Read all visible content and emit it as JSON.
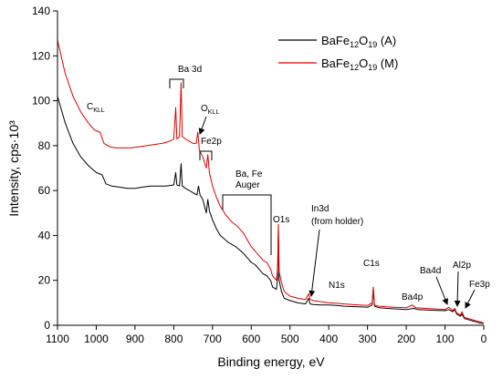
{
  "chart_data": {
    "type": "line",
    "xlabel": "Binding energy, eV",
    "ylabel": "Intensity, cps·10³",
    "xlim": [
      1100,
      0
    ],
    "ylim": [
      0,
      140
    ],
    "x_reversed": true,
    "x_ticks": [
      1100,
      1000,
      900,
      800,
      700,
      600,
      500,
      400,
      300,
      200,
      100,
      0
    ],
    "y_ticks": [
      0,
      20,
      40,
      60,
      80,
      100,
      120,
      140
    ],
    "grid": false,
    "legend_position": "top-right",
    "series": [
      {
        "name": "BaFe12O19 (A)",
        "color": "#000000",
        "points": [
          [
            1100,
            102
          ],
          [
            1080,
            90
          ],
          [
            1060,
            81
          ],
          [
            1040,
            75
          ],
          [
            1020,
            71
          ],
          [
            1000,
            68
          ],
          [
            985,
            67
          ],
          [
            975,
            63
          ],
          [
            960,
            62
          ],
          [
            940,
            61.5
          ],
          [
            920,
            61
          ],
          [
            900,
            61
          ],
          [
            880,
            61.5
          ],
          [
            860,
            62
          ],
          [
            840,
            62
          ],
          [
            820,
            62
          ],
          [
            800,
            62.5
          ],
          [
            795,
            68
          ],
          [
            792,
            62.5
          ],
          [
            785,
            62
          ],
          [
            781,
            72
          ],
          [
            778,
            62
          ],
          [
            770,
            61
          ],
          [
            760,
            60
          ],
          [
            750,
            59
          ],
          [
            740,
            58
          ],
          [
            736,
            62
          ],
          [
            732,
            58
          ],
          [
            725,
            56
          ],
          [
            716,
            50
          ],
          [
            712,
            56
          ],
          [
            708,
            51
          ],
          [
            700,
            47
          ],
          [
            690,
            43
          ],
          [
            680,
            40
          ],
          [
            660,
            37
          ],
          [
            640,
            35
          ],
          [
            620,
            32
          ],
          [
            610,
            30
          ],
          [
            600,
            28
          ],
          [
            590,
            27
          ],
          [
            580,
            25
          ],
          [
            570,
            23
          ],
          [
            560,
            22
          ],
          [
            550,
            20
          ],
          [
            545,
            17
          ],
          [
            535,
            16
          ],
          [
            532,
            21
          ],
          [
            530,
            43
          ],
          [
            528,
            20
          ],
          [
            522,
            15
          ],
          [
            515,
            12
          ],
          [
            500,
            11
          ],
          [
            480,
            10
          ],
          [
            460,
            9.5
          ],
          [
            452,
            12
          ],
          [
            448,
            9.5
          ],
          [
            440,
            9.2
          ],
          [
            420,
            9
          ],
          [
            400,
            9
          ],
          [
            380,
            8.8
          ],
          [
            360,
            8.5
          ],
          [
            340,
            8.3
          ],
          [
            320,
            8.2
          ],
          [
            300,
            8
          ],
          [
            288,
            9
          ],
          [
            285,
            16
          ],
          [
            282,
            8.5
          ],
          [
            270,
            7.8
          ],
          [
            250,
            7.5
          ],
          [
            230,
            7.3
          ],
          [
            200,
            7
          ],
          [
            180,
            7.5
          ],
          [
            170,
            7
          ],
          [
            150,
            6.8
          ],
          [
            120,
            6.6
          ],
          [
            100,
            6.5
          ],
          [
            90,
            7
          ],
          [
            80,
            6
          ],
          [
            75,
            7
          ],
          [
            70,
            5
          ],
          [
            60,
            4
          ],
          [
            56,
            5
          ],
          [
            50,
            3
          ],
          [
            40,
            2.5
          ],
          [
            30,
            2
          ],
          [
            20,
            1.5
          ],
          [
            10,
            1
          ],
          [
            0,
            0.8
          ]
        ]
      },
      {
        "name": "BaFe12O19 (M)",
        "color": "#e00000",
        "points": [
          [
            1100,
            127
          ],
          [
            1080,
            112
          ],
          [
            1060,
            102
          ],
          [
            1040,
            95
          ],
          [
            1020,
            90
          ],
          [
            1005,
            87
          ],
          [
            990,
            86
          ],
          [
            980,
            81
          ],
          [
            965,
            79.5
          ],
          [
            950,
            79
          ],
          [
            930,
            79
          ],
          [
            910,
            79
          ],
          [
            890,
            79.5
          ],
          [
            870,
            80
          ],
          [
            850,
            80.5
          ],
          [
            830,
            81
          ],
          [
            810,
            82
          ],
          [
            800,
            83
          ],
          [
            795,
            97
          ],
          [
            792,
            83
          ],
          [
            785,
            84
          ],
          [
            781,
            108
          ],
          [
            778,
            84
          ],
          [
            770,
            83
          ],
          [
            760,
            82
          ],
          [
            750,
            81
          ],
          [
            742,
            81
          ],
          [
            738,
            86
          ],
          [
            734,
            78
          ],
          [
            725,
            75
          ],
          [
            716,
            70
          ],
          [
            712,
            76
          ],
          [
            708,
            68
          ],
          [
            700,
            62
          ],
          [
            690,
            57
          ],
          [
            680,
            53
          ],
          [
            665,
            49
          ],
          [
            650,
            46
          ],
          [
            635,
            44
          ],
          [
            620,
            41
          ],
          [
            610,
            38
          ],
          [
            600,
            35
          ],
          [
            590,
            33
          ],
          [
            580,
            31
          ],
          [
            570,
            29
          ],
          [
            560,
            28
          ],
          [
            550,
            25
          ],
          [
            545,
            22
          ],
          [
            535,
            20
          ],
          [
            532,
            25
          ],
          [
            530,
            45
          ],
          [
            528,
            24
          ],
          [
            522,
            19
          ],
          [
            515,
            15
          ],
          [
            500,
            13
          ],
          [
            480,
            12
          ],
          [
            460,
            11.5
          ],
          [
            452,
            14
          ],
          [
            448,
            11.5
          ],
          [
            440,
            11
          ],
          [
            420,
            10.5
          ],
          [
            400,
            10
          ],
          [
            380,
            9.8
          ],
          [
            360,
            9.5
          ],
          [
            340,
            9.2
          ],
          [
            320,
            9
          ],
          [
            300,
            8.8
          ],
          [
            288,
            10
          ],
          [
            285,
            17
          ],
          [
            282,
            9
          ],
          [
            270,
            8.5
          ],
          [
            250,
            8.2
          ],
          [
            230,
            8
          ],
          [
            200,
            7.8
          ],
          [
            185,
            9
          ],
          [
            175,
            7.8
          ],
          [
            150,
            7.5
          ],
          [
            120,
            7.2
          ],
          [
            100,
            7
          ],
          [
            90,
            8
          ],
          [
            80,
            6.5
          ],
          [
            75,
            7.5
          ],
          [
            70,
            5.5
          ],
          [
            60,
            4.5
          ],
          [
            56,
            6
          ],
          [
            50,
            3.5
          ],
          [
            40,
            3
          ],
          [
            30,
            2.5
          ],
          [
            20,
            2
          ],
          [
            10,
            1.5
          ],
          [
            0,
            1
          ]
        ]
      }
    ],
    "legend": [
      {
        "base": "BaFe",
        "sub1": "12",
        "mid": "O",
        "sub2": "19",
        "tail": " (A)",
        "color": "#000000"
      },
      {
        "base": "BaFe",
        "sub1": "12",
        "mid": "O",
        "sub2": "19",
        "tail": " (M)",
        "color": "#e00000"
      }
    ],
    "annotations": {
      "ba3d": "Ba 3d",
      "ckll_main": "C",
      "ckll_sub": "KLL",
      "okll_main": "O",
      "okll_sub": "KLL",
      "fe2p": "Fe2p",
      "auger_line1": "Ba, Fe",
      "auger_line2": "Auger",
      "o1s": "O1s",
      "in3d_line1": "In3d",
      "in3d_line2": "(from holder)",
      "n1s": "N1s",
      "c1s": "C1s",
      "ba4d": "Ba4d",
      "ba4p": "Ba4p",
      "al2p": "Al2p",
      "fe3p": "Fe3p"
    }
  }
}
